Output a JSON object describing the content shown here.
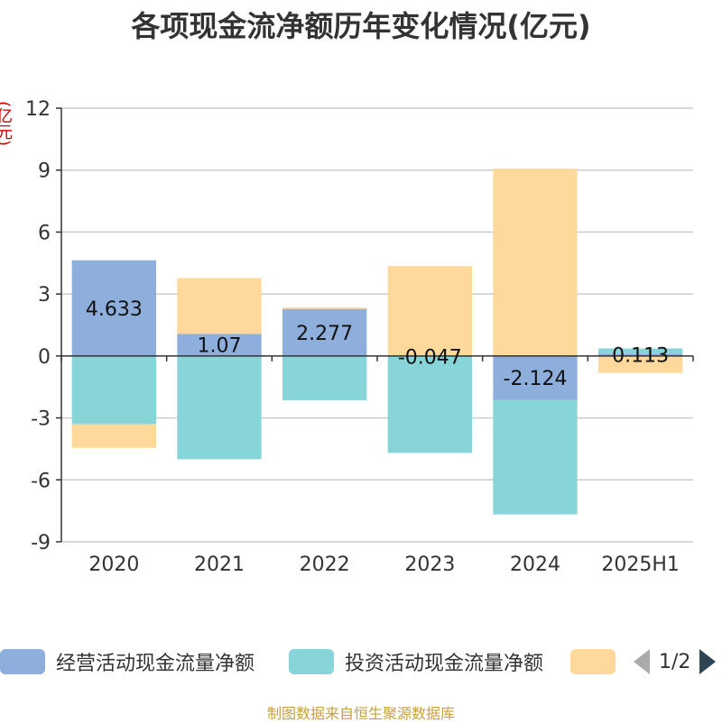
{
  "chart_data": {
    "type": "bar",
    "stacked": true,
    "title": "各项现金流净额历年变化情况(亿元)",
    "ylabel": "(亿元)",
    "xlabel": "",
    "ylim": [
      -9,
      12
    ],
    "yticks": [
      -9,
      -6,
      -3,
      0,
      3,
      6,
      9,
      12
    ],
    "categories": [
      "2020",
      "2021",
      "2022",
      "2023",
      "2024",
      "2025H1"
    ],
    "grid": true,
    "legend_position": "bottom",
    "series": [
      {
        "name": "经营活动现金流量净额",
        "color": "#8eaedb",
        "values": [
          4.633,
          1.07,
          2.277,
          -0.047,
          -2.124,
          0.113
        ],
        "labels": [
          "4.633",
          "1.07",
          "2.277",
          "-0.047",
          "-2.124",
          "0.113"
        ]
      },
      {
        "name": "投资活动现金流量净额",
        "color": "#87d5d8",
        "values": [
          -3.3,
          -5.0,
          -2.15,
          -4.65,
          -5.55,
          0.25
        ]
      },
      {
        "name": "",
        "color": "#fed99b",
        "values": [
          -1.15,
          2.7,
          0.07,
          4.35,
          9.07,
          -0.82
        ]
      }
    ]
  },
  "legend": {
    "items": [
      "经营活动现金流量净额",
      "投资活动现金流量净额",
      ""
    ],
    "page": "1/2"
  },
  "source": "制图数据来自恒生聚源数据库"
}
